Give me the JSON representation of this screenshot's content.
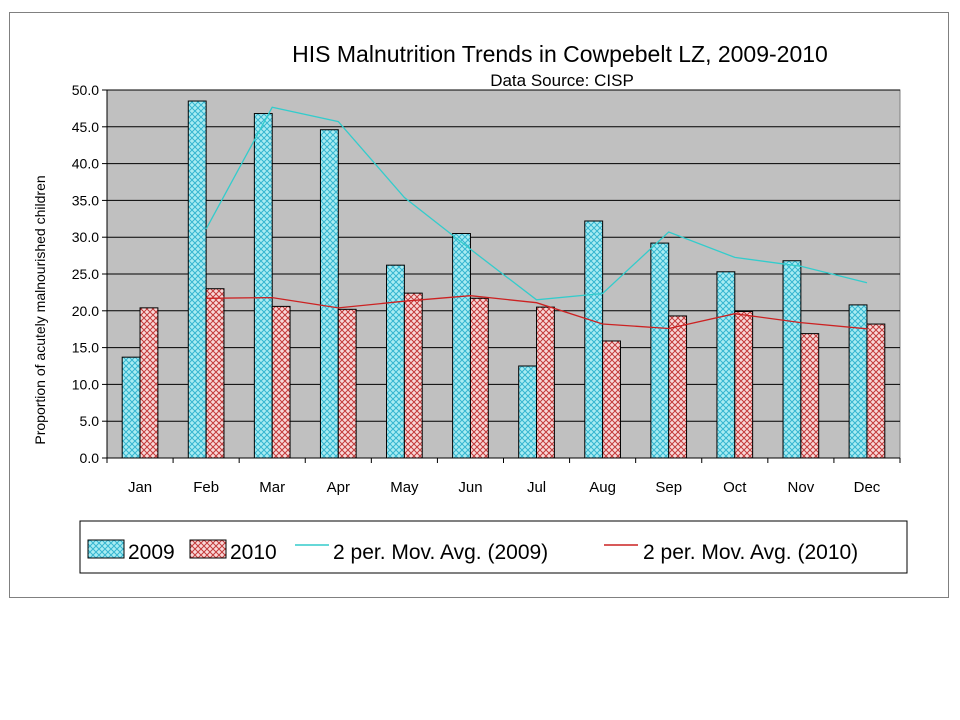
{
  "chart_data": {
    "type": "bar",
    "title": "HIS Malnutrition Trends in Cowpebelt LZ, 2009-2010",
    "subtitle": "Data Source: CISP",
    "ylabel": "Proportion of acutely malnourished children",
    "xlabel": "",
    "ylim": [
      0,
      50
    ],
    "ytick_step": 5,
    "ytick_labels": [
      "0.0",
      "5.0",
      "10.0",
      "15.0",
      "20.0",
      "25.0",
      "30.0",
      "35.0",
      "40.0",
      "45.0",
      "50.0"
    ],
    "categories": [
      "Jan",
      "Feb",
      "Mar",
      "Apr",
      "May",
      "Jun",
      "Jul",
      "Aug",
      "Sep",
      "Oct",
      "Nov",
      "Dec"
    ],
    "series": [
      {
        "name": "2009",
        "values": [
          13.7,
          48.5,
          46.8,
          44.6,
          26.2,
          30.5,
          12.5,
          32.2,
          29.2,
          25.3,
          26.8,
          20.8
        ],
        "color": "#9ee7f0",
        "hatch": "#33aacc"
      },
      {
        "name": "2010",
        "values": [
          20.4,
          23.0,
          20.6,
          20.2,
          22.4,
          21.7,
          20.5,
          15.9,
          19.3,
          19.9,
          16.9,
          18.2
        ],
        "color": "#f4c8c8",
        "hatch": "#c03030"
      }
    ],
    "trendlines": [
      {
        "name": "2 per. Mov. Avg. (2009)",
        "color": "#33cccc",
        "period": 2,
        "series": "2009"
      },
      {
        "name": "2 per. Mov. Avg. (2010)",
        "color": "#cc2222",
        "period": 2,
        "series": "2010"
      }
    ],
    "plot_background": "#c0c0c0",
    "grid": true,
    "legend_position": "bottom"
  }
}
